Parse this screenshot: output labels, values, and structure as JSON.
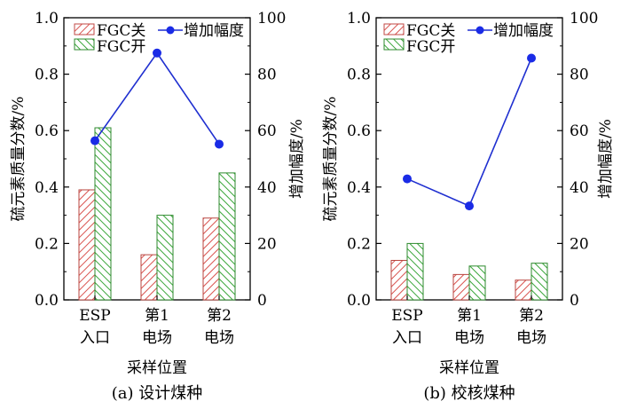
{
  "chart_data": [
    {
      "type": "bar+line",
      "caption": "(a) 设计煤种",
      "xlabel": "采样位置",
      "ylabel_left": "硫元素质量分数/%",
      "ylabel_right": "增加幅度/%",
      "ylim_left": [
        0.0,
        1.0
      ],
      "ylim_right": [
        0,
        100
      ],
      "yticks_left": [
        "0.0",
        "0.2",
        "0.4",
        "0.6",
        "0.8",
        "1.0"
      ],
      "yticks_right": [
        "0",
        "20",
        "40",
        "60",
        "80",
        "100"
      ],
      "categories": [
        [
          "ESP",
          "入口"
        ],
        [
          "第1",
          "电场"
        ],
        [
          "第2",
          "电场"
        ]
      ],
      "series": [
        {
          "name": "FGC关",
          "kind": "bar",
          "axis": "left",
          "values": [
            0.39,
            0.16,
            0.29
          ]
        },
        {
          "name": "FGC开",
          "kind": "bar",
          "axis": "left",
          "values": [
            0.61,
            0.3,
            0.45
          ]
        },
        {
          "name": "增加幅度",
          "kind": "line",
          "axis": "right",
          "values": [
            56.4,
            87.5,
            55.2
          ]
        }
      ]
    },
    {
      "type": "bar+line",
      "caption": "(b) 校核煤种",
      "xlabel": "采样位置",
      "ylabel_left": "硫元素质量分数/%",
      "ylabel_right": "增加幅度/%",
      "ylim_left": [
        0.0,
        1.0
      ],
      "ylim_right": [
        0,
        100
      ],
      "yticks_left": [
        "0.0",
        "0.2",
        "0.4",
        "0.6",
        "0.8",
        "1.0"
      ],
      "yticks_right": [
        "0",
        "20",
        "40",
        "60",
        "80",
        "100"
      ],
      "categories": [
        [
          "ESP",
          "入口"
        ],
        [
          "第1",
          "电场"
        ],
        [
          "第2",
          "电场"
        ]
      ],
      "series": [
        {
          "name": "FGC关",
          "kind": "bar",
          "axis": "left",
          "values": [
            0.14,
            0.09,
            0.07
          ]
        },
        {
          "name": "FGC开",
          "kind": "bar",
          "axis": "left",
          "values": [
            0.2,
            0.12,
            0.13
          ]
        },
        {
          "name": "增加幅度",
          "kind": "line",
          "axis": "right",
          "values": [
            42.9,
            33.3,
            85.7
          ]
        }
      ]
    }
  ],
  "colors": {
    "fgc_off_hatch": "#d9534f",
    "fgc_on_hatch": "#3aa63a",
    "line": "#1f2fd0",
    "marker": "#1a2be6",
    "axis": "#000000"
  }
}
